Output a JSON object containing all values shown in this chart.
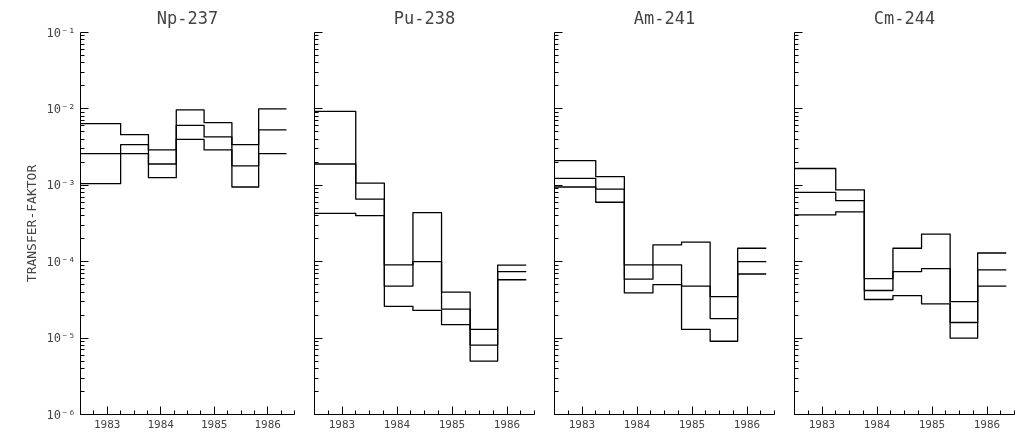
{
  "chart_data": [
    {
      "type": "step",
      "title": "Np-237",
      "ylabel": "TRANSFER-FAKTOR",
      "log": "y",
      "grid": false,
      "line_style": "solid",
      "xlim": [
        1983,
        1987
      ],
      "ylim": [
        1e-06,
        0.1
      ],
      "xticks": [
        {
          "value": 1983.5,
          "label": "1983"
        },
        {
          "value": 1984.5,
          "label": "1984"
        },
        {
          "value": 1985.5,
          "label": "1985"
        },
        {
          "value": 1986.5,
          "label": "1986"
        }
      ],
      "yticks": [
        {
          "value": 1e-06,
          "label": "10⁻⁶"
        },
        {
          "value": 1e-05,
          "label": "10⁻⁵"
        },
        {
          "value": 0.0001,
          "label": "10⁻⁴"
        },
        {
          "value": 0.001,
          "label": "10⁻³"
        },
        {
          "value": 0.01,
          "label": "10⁻²"
        },
        {
          "value": 0.1,
          "label": "10⁻¹"
        }
      ],
      "x": [
        1983.0,
        1983.75,
        1984.27,
        1984.79,
        1985.31,
        1985.83,
        1986.33,
        1986.85
      ],
      "series": [
        {
          "color": "#000000",
          "values": [
            0.0064,
            0.0046,
            0.0029,
            0.0097,
            0.0066,
            0.0034,
            0.01,
            0.01
          ]
        },
        {
          "color": "#000000",
          "values": [
            0.0026,
            0.0034,
            0.0019,
            0.0061,
            0.0043,
            0.0018,
            0.0053,
            0.0053
          ]
        },
        {
          "color": "#000000",
          "values": [
            0.00105,
            0.0026,
            0.00126,
            0.004,
            0.0029,
            0.00095,
            0.0026,
            0.0026
          ]
        }
      ]
    },
    {
      "type": "step",
      "title": "Pu-238",
      "log": "y",
      "grid": false,
      "line_style": "solid",
      "tick_labels": "x",
      "xlim": [
        1983,
        1987
      ],
      "ylim": [
        1e-06,
        0.1
      ],
      "xticks": [
        {
          "value": 1983.5,
          "label": "1983"
        },
        {
          "value": 1984.5,
          "label": "1984"
        },
        {
          "value": 1985.5,
          "label": "1985"
        },
        {
          "value": 1986.5,
          "label": "1986"
        }
      ],
      "yticks": [
        1e-06,
        1e-05,
        0.0001,
        0.001,
        0.01,
        0.1
      ],
      "x": [
        1983.0,
        1983.75,
        1984.27,
        1984.79,
        1985.31,
        1985.83,
        1986.33,
        1986.85
      ],
      "series": [
        {
          "color": "#000000",
          "values": [
            0.0093,
            0.00107,
            9.1e-05,
            0.00044,
            4e-05,
            1.3e-05,
            9e-05,
            9e-05
          ]
        },
        {
          "color": "#000000",
          "values": [
            0.0019,
            0.00066,
            4.8e-05,
            0.0001,
            2.4e-05,
            8.1e-06,
            7.4e-05,
            7.4e-05
          ]
        },
        {
          "color": "#000000",
          "values": [
            0.00043,
            0.0004,
            2.6e-05,
            2.3e-05,
            1.5e-05,
            5e-06,
            5.8e-05,
            5.8e-05
          ]
        }
      ]
    },
    {
      "type": "step",
      "title": "Am-241",
      "log": "y",
      "grid": false,
      "line_style": "solid",
      "tick_labels": "x",
      "xlim": [
        1983,
        1987
      ],
      "ylim": [
        1e-06,
        0.1
      ],
      "xticks": [
        {
          "value": 1983.5,
          "label": "1983"
        },
        {
          "value": 1984.5,
          "label": "1984"
        },
        {
          "value": 1985.5,
          "label": "1985"
        },
        {
          "value": 1986.5,
          "label": "1986"
        }
      ],
      "yticks": [
        1e-06,
        1e-05,
        0.0001,
        0.001,
        0.01,
        0.1
      ],
      "x": [
        1983.0,
        1983.75,
        1984.27,
        1984.79,
        1985.31,
        1985.83,
        1986.33,
        1986.85
      ],
      "series": [
        {
          "color": "#000000",
          "values": [
            0.0021,
            0.0013,
            9.1e-05,
            0.000166,
            0.00018,
            3.5e-05,
            0.00015,
            0.00015
          ]
        },
        {
          "color": "#000000",
          "values": [
            0.00123,
            0.00089,
            5.9e-05,
            9.1e-05,
            4.8e-05,
            1.8e-05,
            0.0001,
            0.0001
          ]
        },
        {
          "color": "#000000",
          "values": [
            0.00095,
            0.0006,
            3.9e-05,
            5e-05,
            1.3e-05,
            9.1e-06,
            6.9e-05,
            6.9e-05
          ]
        }
      ]
    },
    {
      "type": "step",
      "title": "Cm-244",
      "log": "y",
      "grid": false,
      "line_style": "solid",
      "tick_labels": "x",
      "xlim": [
        1983,
        1987
      ],
      "ylim": [
        1e-06,
        0.1
      ],
      "xticks": [
        {
          "value": 1983.5,
          "label": "1983"
        },
        {
          "value": 1984.5,
          "label": "1984"
        },
        {
          "value": 1985.5,
          "label": "1985"
        },
        {
          "value": 1986.5,
          "label": "1986"
        }
      ],
      "yticks": [
        1e-06,
        1e-05,
        0.0001,
        0.001,
        0.01,
        0.1
      ],
      "x": [
        1983.0,
        1983.75,
        1984.27,
        1984.79,
        1985.31,
        1985.83,
        1986.33,
        1986.85
      ],
      "series": [
        {
          "color": "#000000",
          "values": [
            0.00166,
            0.00087,
            6e-05,
            0.00015,
            0.00023,
            3e-05,
            0.00013,
            0.00013
          ]
        },
        {
          "color": "#000000",
          "values": [
            0.00081,
            0.00063,
            4.2e-05,
            7.4e-05,
            8.1e-05,
            1.6e-05,
            7.8e-05,
            7.8e-05
          ]
        },
        {
          "color": "#000000",
          "values": [
            0.00041,
            0.00045,
            3.2e-05,
            3.6e-05,
            2.8e-05,
            1e-05,
            4.8e-05,
            4.8e-05
          ]
        }
      ]
    }
  ]
}
